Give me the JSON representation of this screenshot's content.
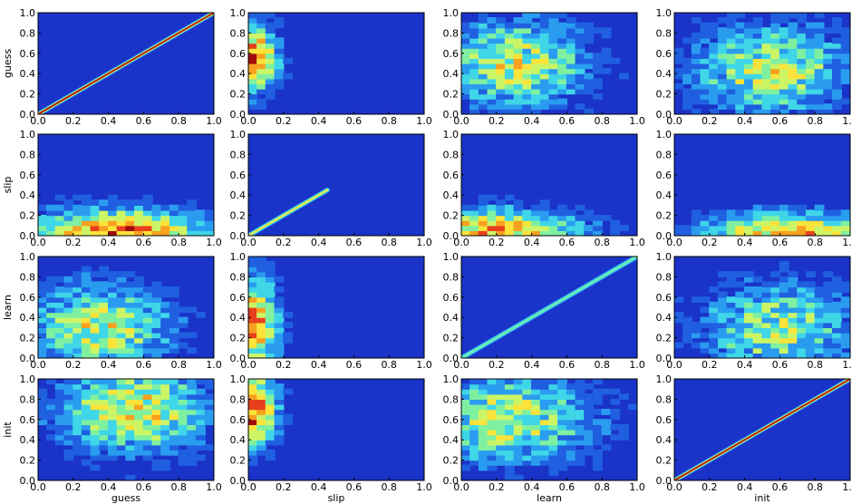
{
  "chart_data": {
    "type": "heatmap",
    "layout": "4x4 grid of filled-contour (density) panels",
    "variables": [
      "guess",
      "slip",
      "learn",
      "init"
    ],
    "xlim": [
      0,
      1
    ],
    "ylim": [
      0,
      1
    ],
    "x_ticks": [
      "0.0",
      "0.2",
      "0.4",
      "0.6",
      "0.8",
      "1.0"
    ],
    "y_ticks": [
      "0.0",
      "0.2",
      "0.4",
      "0.6",
      "0.8",
      "1.0"
    ],
    "colormap": [
      "#1a33c8",
      "#1f5fe0",
      "#2a9cf0",
      "#3fd6e8",
      "#7ff0a0",
      "#ccf566",
      "#fbe33a",
      "#f8a020",
      "#e8401c",
      "#a00a0a"
    ],
    "background_color": "#1a33c8",
    "row_labels": [
      "guess",
      "slip",
      "learn",
      "init"
    ],
    "col_labels": [
      "guess",
      "slip",
      "learn",
      "init"
    ],
    "panels": [
      {
        "row": "guess",
        "col": "guess",
        "kind": "diagonal",
        "peak_value": 0.9
      },
      {
        "row": "guess",
        "col": "slip",
        "kind": "density",
        "x_center": 0.03,
        "y_center": 0.55,
        "x_spread": 0.1,
        "y_spread": 0.22,
        "peak": 0.85
      },
      {
        "row": "guess",
        "col": "learn",
        "kind": "density",
        "x_center": 0.3,
        "y_center": 0.5,
        "x_spread": 0.3,
        "y_spread": 0.3,
        "peak": 0.55
      },
      {
        "row": "guess",
        "col": "init",
        "kind": "density",
        "x_center": 0.55,
        "y_center": 0.45,
        "x_spread": 0.3,
        "y_spread": 0.3,
        "peak": 0.55
      },
      {
        "row": "slip",
        "col": "guess",
        "kind": "density",
        "x_center": 0.45,
        "y_center": 0.05,
        "x_spread": 0.35,
        "y_spread": 0.15,
        "peak": 0.8
      },
      {
        "row": "slip",
        "col": "slip",
        "kind": "diagonal",
        "diagonal_end": 0.45,
        "peak_value": 0.6
      },
      {
        "row": "slip",
        "col": "learn",
        "kind": "density",
        "x_center": 0.2,
        "y_center": 0.05,
        "x_spread": 0.35,
        "y_spread": 0.15,
        "peak": 0.7
      },
      {
        "row": "slip",
        "col": "init",
        "kind": "density",
        "x_center": 0.65,
        "y_center": 0.05,
        "x_spread": 0.35,
        "y_spread": 0.13,
        "peak": 0.7
      },
      {
        "row": "learn",
        "col": "guess",
        "kind": "density",
        "x_center": 0.35,
        "y_center": 0.3,
        "x_spread": 0.3,
        "y_spread": 0.3,
        "peak": 0.55
      },
      {
        "row": "learn",
        "col": "slip",
        "kind": "density",
        "x_center": 0.03,
        "y_center": 0.35,
        "x_spread": 0.1,
        "y_spread": 0.3,
        "peak": 0.8
      },
      {
        "row": "learn",
        "col": "learn",
        "kind": "diagonal",
        "peak_value": 0.45
      },
      {
        "row": "learn",
        "col": "init",
        "kind": "density",
        "x_center": 0.6,
        "y_center": 0.3,
        "x_spread": 0.3,
        "y_spread": 0.3,
        "peak": 0.5
      },
      {
        "row": "init",
        "col": "guess",
        "kind": "density",
        "x_center": 0.55,
        "y_center": 0.7,
        "x_spread": 0.3,
        "y_spread": 0.3,
        "peak": 0.6
      },
      {
        "row": "init",
        "col": "slip",
        "kind": "density",
        "x_center": 0.03,
        "y_center": 0.7,
        "x_spread": 0.1,
        "y_spread": 0.25,
        "peak": 0.85
      },
      {
        "row": "init",
        "col": "learn",
        "kind": "density",
        "x_center": 0.25,
        "y_center": 0.6,
        "x_spread": 0.35,
        "y_spread": 0.3,
        "peak": 0.55
      },
      {
        "row": "init",
        "col": "init",
        "kind": "diagonal",
        "peak_value": 0.9
      }
    ]
  }
}
